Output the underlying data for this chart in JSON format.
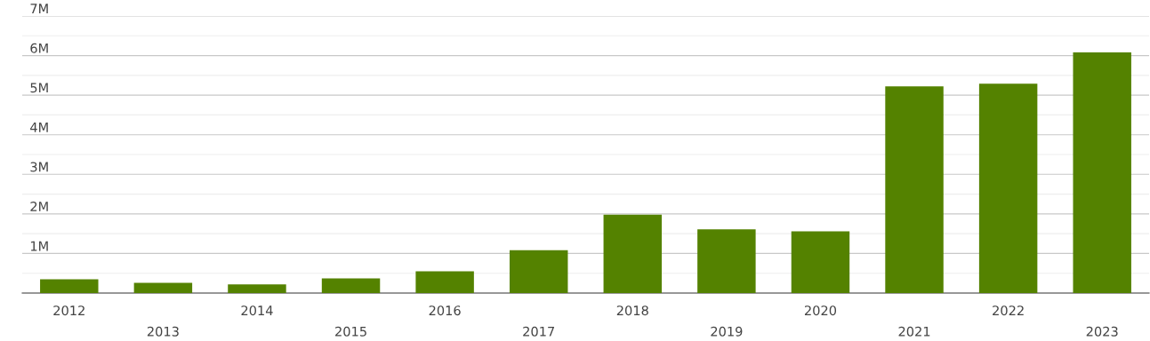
{
  "chart_data": {
    "type": "bar",
    "categories": [
      "2012",
      "2013",
      "2014",
      "2015",
      "2016",
      "2017",
      "2018",
      "2019",
      "2020",
      "2021",
      "2022",
      "2023"
    ],
    "values": [
      350000,
      260000,
      220000,
      370000,
      550000,
      1080000,
      1980000,
      1610000,
      1560000,
      5220000,
      5290000,
      6080000
    ],
    "color": "#548200",
    "ylim": [
      0,
      7000000
    ],
    "yticks": [
      {
        "value": 500000,
        "label": null
      },
      {
        "value": 1000000,
        "label": "1M"
      },
      {
        "value": 1500000,
        "label": null
      },
      {
        "value": 2000000,
        "label": "2M"
      },
      {
        "value": 2500000,
        "label": null
      },
      {
        "value": 3000000,
        "label": "3M"
      },
      {
        "value": 3500000,
        "label": null
      },
      {
        "value": 4000000,
        "label": "4M"
      },
      {
        "value": 4500000,
        "label": null
      },
      {
        "value": 5000000,
        "label": "5M"
      },
      {
        "value": 5500000,
        "label": null
      },
      {
        "value": 6000000,
        "label": "6M"
      },
      {
        "value": 6500000,
        "label": null
      },
      {
        "value": 7000000,
        "label": "7M"
      }
    ],
    "grid": "y"
  }
}
